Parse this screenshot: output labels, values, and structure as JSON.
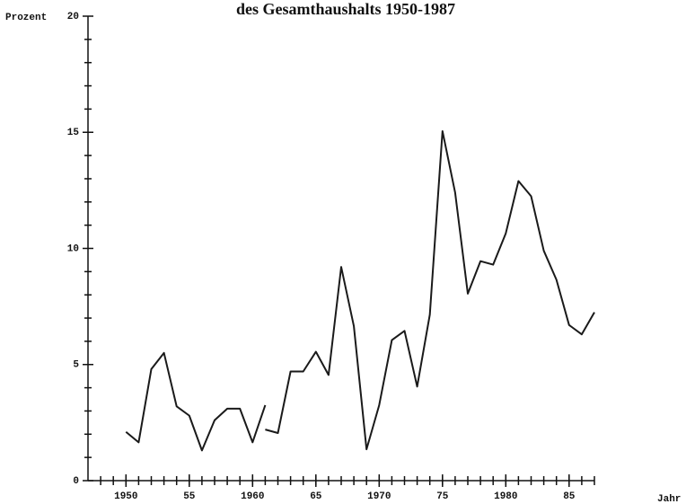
{
  "chart_data": {
    "type": "line",
    "title": "des Gesamthaushalts 1950-1987",
    "ylabel": "Prozent",
    "xlabel": "Jahr",
    "x": [
      1950,
      1951,
      1952,
      1953,
      1954,
      1955,
      1956,
      1957,
      1958,
      1959,
      1960,
      1961,
      1961,
      1961,
      1962,
      1963,
      1964,
      1965,
      1966,
      1967,
      1968,
      1969,
      1970,
      1971,
      1972,
      1973,
      1974,
      1975,
      1976,
      1977,
      1978,
      1979,
      1980,
      1981,
      1982,
      1983,
      1984,
      1985,
      1986,
      1987
    ],
    "series": [
      {
        "color": "#1a1a1a",
        "values": [
          2.1,
          1.65,
          4.8,
          5.5,
          3.2,
          2.8,
          1.3,
          2.6,
          3.1,
          3.1,
          1.65,
          3.25,
          null,
          2.2,
          2.05,
          4.7,
          4.7,
          5.55,
          4.55,
          9.2,
          6.65,
          1.35,
          3.25,
          6.05,
          6.45,
          4.05,
          7.15,
          15.05,
          12.4,
          8.05,
          9.45,
          9.3,
          10.65,
          12.9,
          12.25,
          9.9,
          8.65,
          6.7,
          6.3,
          7.25
        ]
      }
    ],
    "xlim": [
      1947,
      1987
    ],
    "xticks": [
      1950,
      {
        "value": 1955,
        "label": "55"
      },
      1960,
      {
        "value": 1965,
        "label": "65"
      },
      1970,
      {
        "value": 1975,
        "label": "75"
      },
      1980,
      {
        "value": 1985,
        "label": "85"
      }
    ],
    "xminorticks": [
      1948,
      1949,
      1950,
      1951,
      1952,
      1953,
      1954,
      1955,
      1956,
      1957,
      1958,
      1959,
      1960,
      1961,
      1962,
      1963,
      1964,
      1965,
      1966,
      1967,
      1968,
      1969,
      1970,
      1971,
      1972,
      1973,
      1974,
      1975,
      1976,
      1977,
      1978,
      1979,
      1980,
      1981,
      1982,
      1983,
      1984,
      1985,
      1986,
      1987
    ],
    "ylim": [
      0,
      20
    ],
    "yticks": [
      0,
      5,
      10,
      15,
      20
    ],
    "yminorticks": [
      1,
      2,
      3,
      4,
      6,
      7,
      8,
      9,
      11,
      12,
      13,
      14,
      16,
      17,
      18,
      19
    ],
    "grid": false
  }
}
